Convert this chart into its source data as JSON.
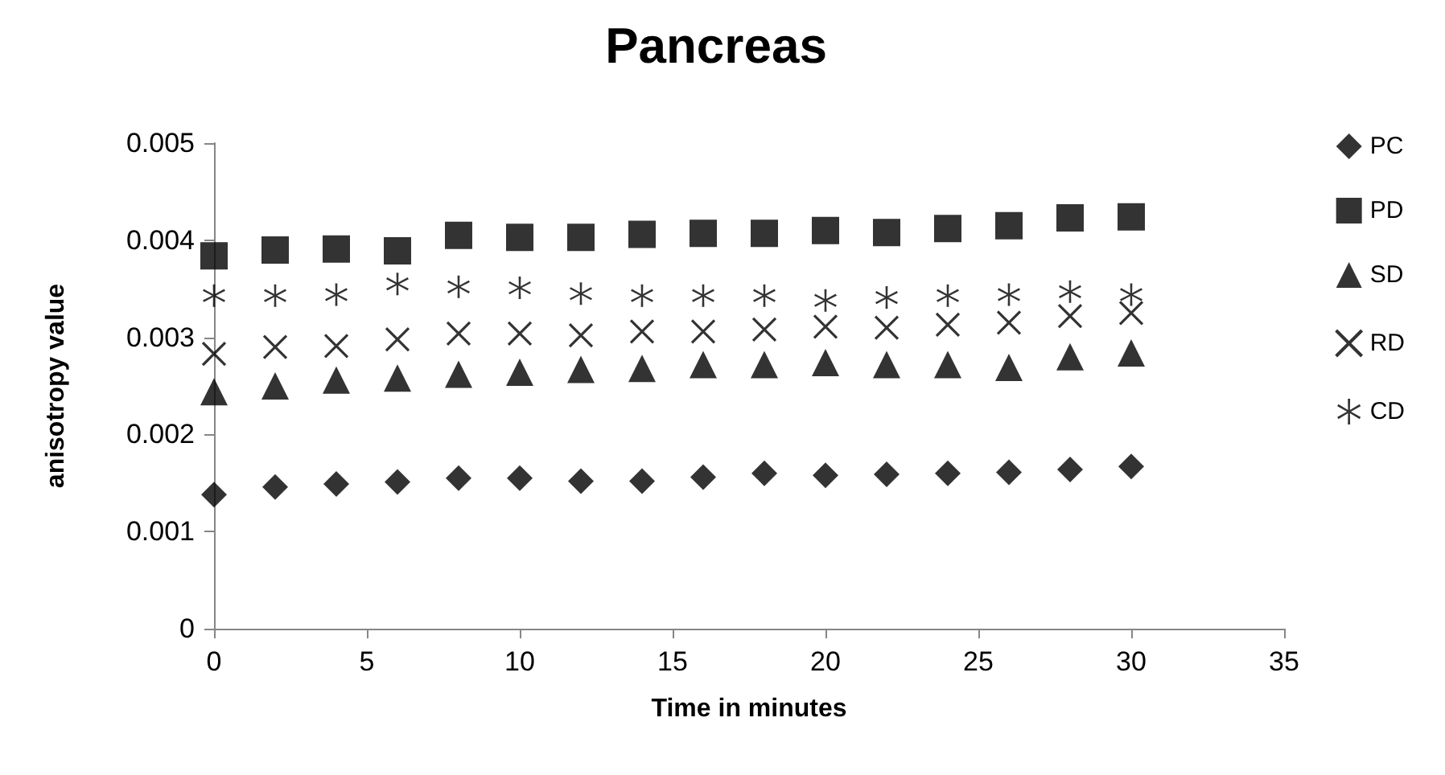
{
  "chart_data": {
    "type": "scatter",
    "title": "Pancreas",
    "xlabel": "Time in minutes",
    "ylabel": "anisotropy value",
    "x": [
      0,
      2,
      4,
      6,
      8,
      10,
      12,
      14,
      16,
      18,
      20,
      22,
      24,
      26,
      28,
      30
    ],
    "series": [
      {
        "name": "PC",
        "color": "#000000",
        "marker": "diamond",
        "values": [
          0.00138,
          0.00146,
          0.00149,
          0.00151,
          0.00155,
          0.00155,
          0.00152,
          0.00152,
          0.00156,
          0.0016,
          0.00158,
          0.00159,
          0.0016,
          0.00161,
          0.00164,
          0.00167
        ]
      },
      {
        "name": "PD",
        "color": "#000000",
        "marker": "square",
        "values": [
          0.00384,
          0.0039,
          0.00391,
          0.00389,
          0.00405,
          0.00403,
          0.00403,
          0.00406,
          0.00407,
          0.00407,
          0.0041,
          0.00408,
          0.00412,
          0.00415,
          0.00423,
          0.00424
        ]
      },
      {
        "name": "SD",
        "color": "#000000",
        "marker": "triangle",
        "values": [
          0.00244,
          0.0025,
          0.00256,
          0.00258,
          0.00262,
          0.00264,
          0.00267,
          0.00268,
          0.00272,
          0.00272,
          0.00274,
          0.00272,
          0.00272,
          0.00269,
          0.0028,
          0.00284
        ]
      },
      {
        "name": "RD",
        "color": "#000000",
        "marker": "cross",
        "values": [
          0.00283,
          0.0029,
          0.00291,
          0.00298,
          0.00304,
          0.00304,
          0.00302,
          0.00306,
          0.00306,
          0.00308,
          0.00311,
          0.0031,
          0.00313,
          0.00315,
          0.00322,
          0.00325
        ]
      },
      {
        "name": "CD",
        "color": "#000000",
        "marker": "star",
        "values": [
          0.00343,
          0.00343,
          0.00344,
          0.00355,
          0.00352,
          0.00351,
          0.00345,
          0.00343,
          0.00343,
          0.00343,
          0.00338,
          0.00341,
          0.00343,
          0.00344,
          0.00347,
          0.00344
        ]
      }
    ],
    "xlim": [
      0,
      35
    ],
    "xticks": [
      0,
      5,
      10,
      15,
      20,
      25,
      30,
      35
    ],
    "ylim": [
      0,
      0.005
    ],
    "yticks": [
      0,
      0.001,
      0.002,
      0.003,
      0.004,
      0.005
    ],
    "grid": false,
    "legend": "right"
  }
}
